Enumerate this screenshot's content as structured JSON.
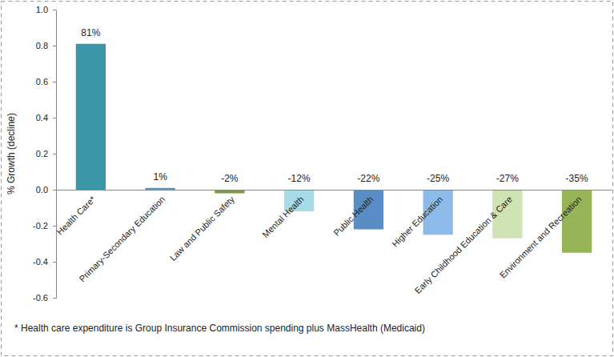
{
  "chart_data": {
    "type": "bar",
    "ylabel": "% Growth (decline)",
    "categories": [
      "Health Care*",
      "Primary-Secondary Education",
      "Law and Public Safety",
      "Mental Health",
      "Public Health",
      "Higher Education",
      "Early Childhood Education & Care",
      "Environment and Recreation"
    ],
    "values": [
      0.81,
      0.01,
      -0.02,
      -0.12,
      -0.22,
      -0.25,
      -0.27,
      -0.35
    ],
    "value_labels": [
      "81%",
      "1%",
      "-2%",
      "-12%",
      "-22%",
      "-25%",
      "-27%",
      "-35%"
    ],
    "colors": [
      "#3b96a8",
      "#5b94c8",
      "#7d9a4a",
      "#a8dbe8",
      "#5a8dc6",
      "#8dbbe9",
      "#cfe2b3",
      "#95b557"
    ],
    "ylim": [
      -0.6,
      1.0
    ],
    "yticks": [
      -0.6,
      -0.4,
      -0.2,
      {
        "value": 0,
        "label": "0.0"
      },
      0.2,
      0.4,
      0.6,
      0.8,
      {
        "value": 1.0,
        "label": "1.0"
      }
    ],
    "grid": false,
    "data_labels": true,
    "annotations": [
      "* Health care expenditure is Group Insurance Commission spending plus MassHealth (Medicaid)"
    ]
  }
}
